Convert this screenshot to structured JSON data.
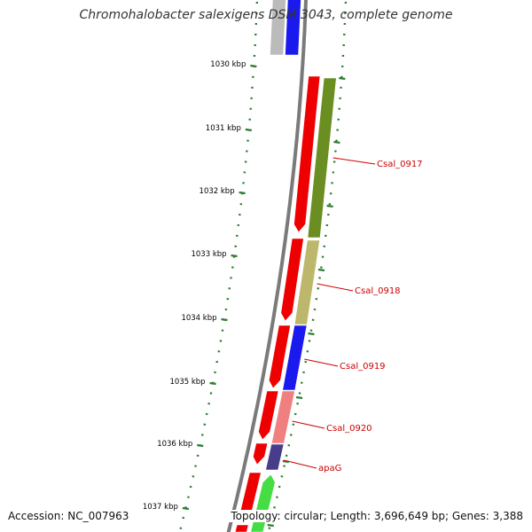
{
  "title": "Chromohalobacter salexigens DSM 3043, complete genome",
  "footer": {
    "accession": "Accession: NC_007963",
    "stats": "Topology: circular; Length: 3,696,649 bp; Genes: 3,388"
  },
  "ruler": {
    "unit": "kbp",
    "labels": [
      "1030 kbp",
      "1031 kbp",
      "1032 kbp",
      "1033 kbp",
      "1034 kbp",
      "1035 kbp",
      "1036 kbp",
      "1037 kbp"
    ]
  },
  "colors": {
    "backbone": "#7a7a7a",
    "tick": "#2e7d32",
    "label_red": "#cc0000",
    "reverse_cds": "#ee0000",
    "gene_grey": "#bbbbbb",
    "gene_blue_top": "#1a1aee",
    "Csal_0917": "#6b8e23",
    "Csal_0918": "#bdb76b",
    "Csal_0919": "#1a1aee",
    "Csal_0920": "#f08080",
    "apaG": "#483d8b",
    "next_gene": "#44dd44"
  },
  "gene_labels": [
    {
      "id": "Csal_0917",
      "label": "Csal_0917"
    },
    {
      "id": "Csal_0918",
      "label": "Csal_0918"
    },
    {
      "id": "Csal_0919",
      "label": "Csal_0919"
    },
    {
      "id": "Csal_0920",
      "label": "Csal_0920"
    },
    {
      "id": "apaG",
      "label": "apaG"
    }
  ]
}
